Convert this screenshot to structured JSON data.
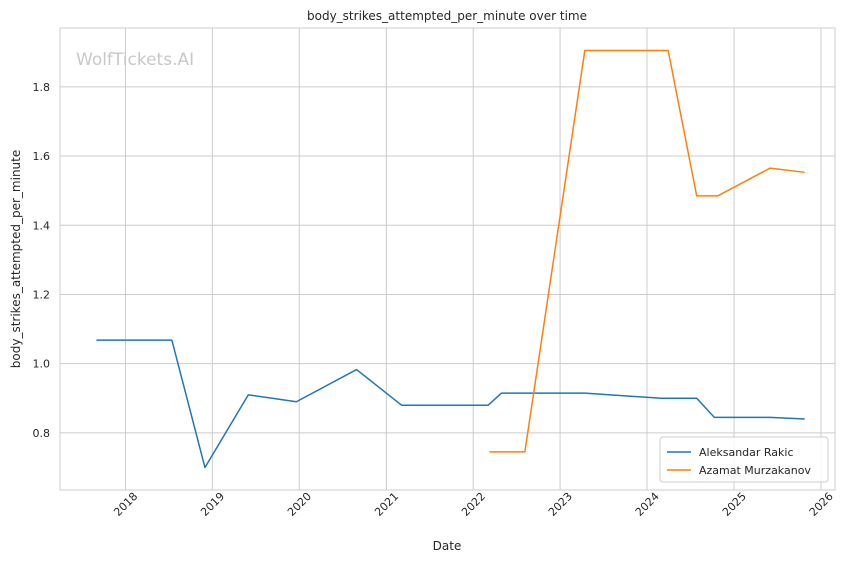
{
  "watermark": "WolfTickets.AI",
  "chart_data": {
    "type": "line",
    "title": "body_strikes_attempted_per_minute over time",
    "xlabel": "Date",
    "ylabel": "body_strikes_attempted_per_minute",
    "xlim": [
      "2017-04-01",
      "2026-03-01"
    ],
    "ylim": [
      0.635,
      1.97
    ],
    "x_ticks": [
      "2018",
      "2019",
      "2020",
      "2021",
      "2022",
      "2023",
      "2024",
      "2025",
      "2026"
    ],
    "y_ticks": [
      "0.8",
      "1.0",
      "1.2",
      "1.4",
      "1.6",
      "1.8"
    ],
    "grid": true,
    "legend_position": "lower-right",
    "series": [
      {
        "name": "Aleksandar Rakic",
        "color": "#1f77b4",
        "points": [
          [
            "2017-09-01",
            1.068
          ],
          [
            "2018-07-15",
            1.068
          ],
          [
            "2018-12-01",
            0.7
          ],
          [
            "2019-06-01",
            0.91
          ],
          [
            "2019-12-20",
            0.89
          ],
          [
            "2020-08-29",
            0.983
          ],
          [
            "2021-03-06",
            0.88
          ],
          [
            "2022-03-05",
            0.88
          ],
          [
            "2022-04-30",
            0.915
          ],
          [
            "2023-04-15",
            0.915
          ],
          [
            "2024-03-01",
            0.9
          ],
          [
            "2024-07-28",
            0.9
          ],
          [
            "2024-10-10",
            0.845
          ],
          [
            "2025-06-01",
            0.845
          ],
          [
            "2025-10-25",
            0.84
          ]
        ]
      },
      {
        "name": "Azamat Murzakanov",
        "color": "#ff7f0e",
        "points": [
          [
            "2022-03-10",
            0.745
          ],
          [
            "2022-08-06",
            0.745
          ],
          [
            "2023-04-15",
            1.905
          ],
          [
            "2024-03-30",
            1.905
          ],
          [
            "2024-07-28",
            1.485
          ],
          [
            "2024-10-25",
            1.485
          ],
          [
            "2025-06-01",
            1.565
          ],
          [
            "2025-10-25",
            1.553
          ]
        ]
      }
    ]
  }
}
